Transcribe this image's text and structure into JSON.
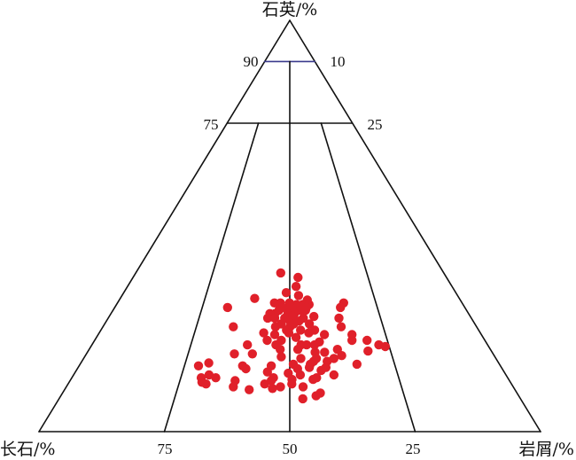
{
  "chart_data": {
    "type": "scatter",
    "chart_kind": "ternary",
    "apex_labels": {
      "top": "石英/%",
      "left": "长石/%",
      "right": "岩屑/%"
    },
    "tick_labels": {
      "left_edge": [
        "90",
        "75"
      ],
      "right_edge": [
        "10",
        "25"
      ],
      "base": [
        "75",
        "50",
        "25"
      ]
    },
    "marker_color": "#e0202a",
    "line_color": "#111111",
    "accent_line_color": "#3a3a8c",
    "fields": {
      "quartz_lines": [
        90,
        75
      ],
      "ratio_lines": [
        75,
        50,
        25
      ]
    },
    "points": [
      {
        "Q": 38.6,
        "F": 32.5,
        "R": 28.9
      },
      {
        "Q": 37.5,
        "F": 29.6,
        "R": 32.9
      },
      {
        "Q": 35.3,
        "F": 31.1,
        "R": 33.6
      },
      {
        "Q": 33.8,
        "F": 33.8,
        "R": 32.4
      },
      {
        "Q": 33.1,
        "F": 31.7,
        "R": 35.2
      },
      {
        "Q": 32.4,
        "F": 40.8,
        "R": 26.8
      },
      {
        "Q": 32.0,
        "F": 30.5,
        "R": 37.5
      },
      {
        "Q": 31.3,
        "F": 23.6,
        "R": 45.1
      },
      {
        "Q": 31.3,
        "F": 34.4,
        "R": 34.3
      },
      {
        "Q": 31.3,
        "F": 36.2,
        "R": 32.5
      },
      {
        "Q": 31.3,
        "F": 37.4,
        "R": 31.3
      },
      {
        "Q": 30.9,
        "F": 32.0,
        "R": 37.1
      },
      {
        "Q": 30.9,
        "F": 33.2,
        "R": 35.9
      },
      {
        "Q": 30.9,
        "F": 30.7,
        "R": 38.4
      },
      {
        "Q": 30.2,
        "F": 33.6,
        "R": 36.2
      },
      {
        "Q": 30.2,
        "F": 34.8,
        "R": 35.0
      },
      {
        "Q": 30.2,
        "F": 36.4,
        "R": 33.4
      },
      {
        "Q": 30.2,
        "F": 31.6,
        "R": 38.2
      },
      {
        "Q": 30.2,
        "F": 24.8,
        "R": 45.0
      },
      {
        "Q": 30.2,
        "F": 47.3,
        "R": 22.5
      },
      {
        "Q": 29.5,
        "F": 33.1,
        "R": 37.4
      },
      {
        "Q": 29.5,
        "F": 32.1,
        "R": 38.4
      },
      {
        "Q": 29.5,
        "F": 37.4,
        "R": 33.1
      },
      {
        "Q": 28.7,
        "F": 34.7,
        "R": 36.6
      },
      {
        "Q": 28.7,
        "F": 36.0,
        "R": 35.3
      },
      {
        "Q": 28.7,
        "F": 38.6,
        "R": 32.7
      },
      {
        "Q": 28.7,
        "F": 39.6,
        "R": 31.7
      },
      {
        "Q": 28.0,
        "F": 35.4,
        "R": 36.6
      },
      {
        "Q": 28.0,
        "F": 31.2,
        "R": 40.8
      },
      {
        "Q": 27.6,
        "F": 26.4,
        "R": 46.0
      },
      {
        "Q": 27.6,
        "F": 37.2,
        "R": 35.2
      },
      {
        "Q": 27.6,
        "F": 39.2,
        "R": 33.2
      },
      {
        "Q": 27.6,
        "F": 40.6,
        "R": 31.8
      },
      {
        "Q": 27.6,
        "F": 33.5,
        "R": 38.9
      },
      {
        "Q": 26.9,
        "F": 36.5,
        "R": 36.6
      },
      {
        "Q": 26.9,
        "F": 34.7,
        "R": 38.4
      },
      {
        "Q": 26.2,
        "F": 38.6,
        "R": 35.2
      },
      {
        "Q": 26.2,
        "F": 36.1,
        "R": 37.7
      },
      {
        "Q": 26.2,
        "F": 33.0,
        "R": 40.8
      },
      {
        "Q": 25.5,
        "F": 48.5,
        "R": 26.0
      },
      {
        "Q": 25.5,
        "F": 40.1,
        "R": 34.4
      },
      {
        "Q": 25.5,
        "F": 37.2,
        "R": 37.3
      },
      {
        "Q": 25.5,
        "F": 27.0,
        "R": 47.5
      },
      {
        "Q": 24.7,
        "F": 38.3,
        "R": 37.0
      },
      {
        "Q": 24.7,
        "F": 35.5,
        "R": 39.8
      },
      {
        "Q": 24.7,
        "F": 32.7,
        "R": 42.6
      },
      {
        "Q": 24.0,
        "F": 43.2,
        "R": 32.8
      },
      {
        "Q": 24.0,
        "F": 38.2,
        "R": 37.8
      },
      {
        "Q": 24.0,
        "F": 34.2,
        "R": 41.8
      },
      {
        "Q": 23.6,
        "F": 31.3,
        "R": 45.1
      },
      {
        "Q": 23.6,
        "F": 25.8,
        "R": 50.6
      },
      {
        "Q": 23.6,
        "F": 41.2,
        "R": 35.2
      },
      {
        "Q": 22.9,
        "F": 37.3,
        "R": 39.8
      },
      {
        "Q": 22.2,
        "F": 40.6,
        "R": 37.2
      },
      {
        "Q": 22.2,
        "F": 43.4,
        "R": 34.4
      },
      {
        "Q": 22.2,
        "F": 26.5,
        "R": 51.3
      },
      {
        "Q": 22.2,
        "F": 23.5,
        "R": 54.3
      },
      {
        "Q": 21.8,
        "F": 33.2,
        "R": 45.0
      },
      {
        "Q": 21.1,
        "F": 47.9,
        "R": 31.0
      },
      {
        "Q": 21.1,
        "F": 37.2,
        "R": 41.7
      },
      {
        "Q": 21.1,
        "F": 34.5,
        "R": 44.4
      },
      {
        "Q": 21.1,
        "F": 36.1,
        "R": 42.8
      },
      {
        "Q": 21.1,
        "F": 42.2,
        "R": 36.7
      },
      {
        "Q": 21.1,
        "F": 21.7,
        "R": 57.2
      },
      {
        "Q": 20.7,
        "F": 20.6,
        "R": 58.7
      },
      {
        "Q": 20.0,
        "F": 30.5,
        "R": 49.5
      },
      {
        "Q": 20.0,
        "F": 38.4,
        "R": 41.6
      },
      {
        "Q": 20.0,
        "F": 41.9,
        "R": 38.1
      },
      {
        "Q": 19.6,
        "F": 24.6,
        "R": 55.8
      },
      {
        "Q": 19.3,
        "F": 33.4,
        "R": 47.3
      },
      {
        "Q": 19.3,
        "F": 35.3,
        "R": 45.4
      },
      {
        "Q": 18.9,
        "F": 48.0,
        "R": 33.1
      },
      {
        "Q": 18.9,
        "F": 51.6,
        "R": 29.5
      },
      {
        "Q": 18.5,
        "F": 30.4,
        "R": 51.1
      },
      {
        "Q": 18.2,
        "F": 42.6,
        "R": 39.2
      },
      {
        "Q": 17.8,
        "F": 38.9,
        "R": 43.3
      },
      {
        "Q": 17.8,
        "F": 35.8,
        "R": 46.4
      },
      {
        "Q": 17.8,
        "F": 32.3,
        "R": 49.9
      },
      {
        "Q": 17.1,
        "F": 36.7,
        "R": 46.2
      },
      {
        "Q": 17.1,
        "F": 34.0,
        "R": 48.9
      },
      {
        "Q": 16.7,
        "F": 57.8,
        "R": 25.5
      },
      {
        "Q": 16.4,
        "F": 41.1,
        "R": 42.5
      },
      {
        "Q": 16.4,
        "F": 37.7,
        "R": 45.9
      },
      {
        "Q": 16.4,
        "F": 28.4,
        "R": 55.2
      },
      {
        "Q": 16.0,
        "F": 60.2,
        "R": 23.8
      },
      {
        "Q": 16.0,
        "F": 51.4,
        "R": 32.6
      },
      {
        "Q": 16.0,
        "F": 45.7,
        "R": 38.3
      },
      {
        "Q": 15.6,
        "F": 35.0,
        "R": 49.4
      },
      {
        "Q": 15.6,
        "F": 38.3,
        "R": 46.1
      },
      {
        "Q": 15.3,
        "F": 51.1,
        "R": 33.6
      },
      {
        "Q": 15.3,
        "F": 40.8,
        "R": 43.9
      },
      {
        "Q": 14.9,
        "F": 36.3,
        "R": 48.8
      },
      {
        "Q": 14.5,
        "F": 47.2,
        "R": 38.3
      },
      {
        "Q": 14.2,
        "F": 43.2,
        "R": 42.6
      },
      {
        "Q": 13.8,
        "F": 59.2,
        "R": 27.0
      },
      {
        "Q": 13.8,
        "F": 41.0,
        "R": 45.2
      },
      {
        "Q": 13.8,
        "F": 34.3,
        "R": 51.9
      },
      {
        "Q": 13.1,
        "F": 58.2,
        "R": 28.7
      },
      {
        "Q": 13.1,
        "F": 61.1,
        "R": 25.8
      },
      {
        "Q": 13.1,
        "F": 46.7,
        "R": 40.2
      },
      {
        "Q": 13.1,
        "F": 38.1,
        "R": 48.8
      },
      {
        "Q": 12.7,
        "F": 43.2,
        "R": 44.1
      },
      {
        "Q": 12.7,
        "F": 39.0,
        "R": 48.3
      },
      {
        "Q": 12.4,
        "F": 47.5,
        "R": 40.1
      },
      {
        "Q": 12.4,
        "F": 54.7,
        "R": 32.9
      },
      {
        "Q": 12.0,
        "F": 61.5,
        "R": 26.5
      },
      {
        "Q": 11.6,
        "F": 49.2,
        "R": 39.2
      },
      {
        "Q": 11.6,
        "F": 43.8,
        "R": 44.6
      },
      {
        "Q": 11.6,
        "F": 60.9,
        "R": 27.5
      },
      {
        "Q": 10.9,
        "F": 46.4,
        "R": 42.7
      },
      {
        "Q": 10.9,
        "F": 41.9,
        "R": 47.2
      },
      {
        "Q": 10.9,
        "F": 55.8,
        "R": 33.3
      },
      {
        "Q": 10.5,
        "F": 48.2,
        "R": 41.3
      },
      {
        "Q": 10.2,
        "F": 53.0,
        "R": 36.8
      },
      {
        "Q": 9.4,
        "F": 39.2,
        "R": 51.4
      },
      {
        "Q": 8.7,
        "F": 40.4,
        "R": 50.9
      },
      {
        "Q": 8.0,
        "F": 43.4,
        "R": 48.6
      }
    ]
  }
}
